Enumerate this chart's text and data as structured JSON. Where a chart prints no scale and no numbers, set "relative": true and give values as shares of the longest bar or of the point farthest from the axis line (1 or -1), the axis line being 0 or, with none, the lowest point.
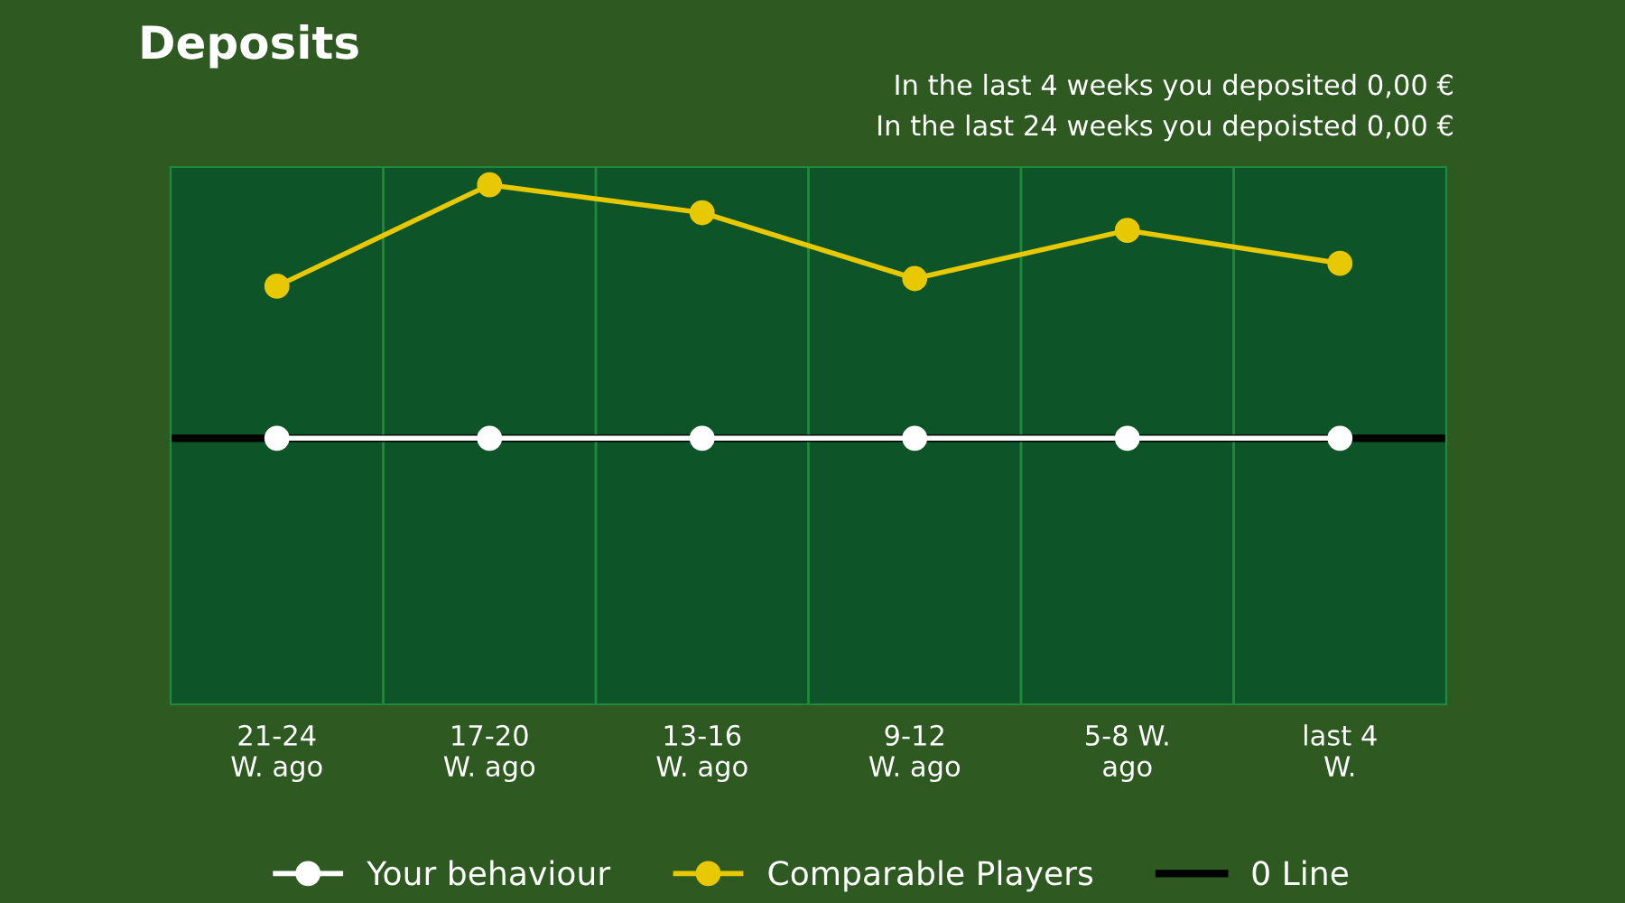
{
  "chart_data": {
    "type": "line",
    "title": "Deposits",
    "annotations": [
      "In the last 4 weeks you deposited 0,00 €",
      "In the last 24 weeks you depoisted 0,00 €"
    ],
    "categories": [
      "21-24\nW. ago",
      "17-20\nW. ago",
      "13-16\nW. ago",
      "9-12\nW. ago",
      "5-8 W.\nago",
      "last 4\nW."
    ],
    "relative": true,
    "series": [
      {
        "name": "Your behaviour",
        "color": "#ffffff",
        "values": [
          0,
          0,
          0,
          0,
          0,
          0
        ]
      },
      {
        "name": "Comparable Players",
        "color": "#e8c800",
        "values": [
          0.6,
          1,
          0.89,
          0.63,
          0.82,
          0.69
        ]
      }
    ],
    "ref_lines": [
      {
        "axis": "y",
        "value": 0,
        "label": "0 Line",
        "color": "#000000"
      }
    ],
    "marker": "circle",
    "line_style": "solid",
    "grid": "x",
    "legend": "bottom"
  }
}
